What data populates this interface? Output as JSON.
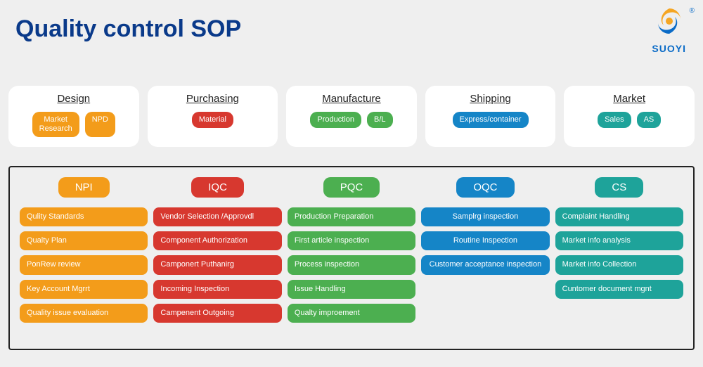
{
  "title": "Quality control SOP",
  "logo_text": "SUOYI",
  "colors": {
    "title": "#0a3a8a",
    "page_bg": "#efefef",
    "card_bg": "#ffffff",
    "border": "#222222",
    "orange": "#f39c1a",
    "red": "#d7382f",
    "green": "#4caf50",
    "blue": "#1585c7",
    "teal": "#1ea39a",
    "logo_orange": "#f5a623",
    "logo_blue": "#0a6bc7"
  },
  "stages": [
    {
      "name": "Design",
      "color": "#f39c1a",
      "tags": [
        "Market\nResearch",
        "NPD"
      ]
    },
    {
      "name": "Purchasing",
      "color": "#d7382f",
      "tags": [
        "Material"
      ]
    },
    {
      "name": "Manufacture",
      "color": "#4caf50",
      "tags": [
        "Production",
        "B/L"
      ]
    },
    {
      "name": "Shipping",
      "color": "#1585c7",
      "tags": [
        "Express/container"
      ]
    },
    {
      "name": "Market",
      "color": "#1ea39a",
      "tags": [
        "Sales",
        "AS"
      ]
    }
  ],
  "detail_columns": [
    {
      "header": "NPI",
      "color": "#f39c1a",
      "items": [
        "Qulity Standards",
        "Qualty Plan",
        "PonRew review",
        "Key Account Mgrrt",
        "Quality issue evaluation"
      ]
    },
    {
      "header": "IQC",
      "color": "#d7382f",
      "items": [
        "Vendor Selection /Approvdl",
        "Component Authorization",
        "Camponert Puthanirg",
        "Incoming Inspection",
        "Campenent Outgoing"
      ]
    },
    {
      "header": "PQC",
      "color": "#4caf50",
      "items": [
        "Production Preparation",
        "First article inspection",
        "Process inspection",
        "Issue Handling",
        "Qualty improement"
      ]
    },
    {
      "header": "OQC",
      "color": "#1585c7",
      "centered": true,
      "items": [
        "Samplrg inspection",
        "Routine Inspection",
        "Customer acceptance inspection"
      ]
    },
    {
      "header": "CS",
      "color": "#1ea39a",
      "items": [
        "Complaint Handling",
        "Market info analysis",
        "Market info Collection",
        "Cuntomer document mgnt"
      ]
    }
  ]
}
